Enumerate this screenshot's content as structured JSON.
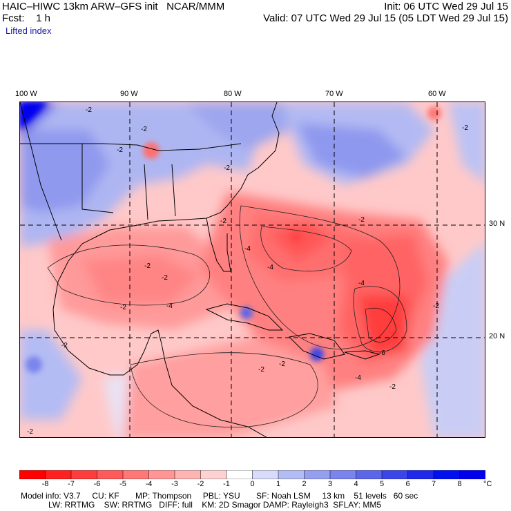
{
  "header": {
    "model_line": "HAIC–HIWC 13km ARW–GFS init   NCAR/MMM",
    "init_line": "Init: 06 UTC Wed 29 Jul 15",
    "fcst_line": "Fcst:    1 h",
    "valid_line": "Valid: 07 UTC Wed 29 Jul 15 (05 LDT Wed 29 Jul 15)",
    "field_name": "Lifted index"
  },
  "map": {
    "lon_labels": [
      "100 W",
      "90 W",
      "80 W",
      "70 W",
      "60 W"
    ],
    "lat_labels": [
      "30 N",
      "20 N"
    ],
    "contour_labels": [
      "-2",
      "-2",
      "-2",
      "-2",
      "-2",
      "-2",
      "-2",
      "-2",
      "-4",
      "-4",
      "-4",
      "-4",
      "-2",
      "-2",
      "-2",
      "-2",
      "-6",
      "-4",
      "-2",
      "-2",
      "-2",
      "-2"
    ]
  },
  "colorbar": {
    "ticks": [
      "-8",
      "-7",
      "-6",
      "-5",
      "-4",
      "-3",
      "-2",
      "-1",
      "0",
      "1",
      "2",
      "3",
      "4",
      "5",
      "6",
      "7",
      "8"
    ],
    "unit": "°C",
    "colors": [
      "#ff0000",
      "#ff2020",
      "#ff3c3c",
      "#ff5a5a",
      "#ff7777",
      "#ff9595",
      "#ffb4b4",
      "#ffd2d2",
      "#ffffff",
      "#d8dcfa",
      "#b4bcf4",
      "#959ff0",
      "#7a84ec",
      "#5c66e8",
      "#3c46e8",
      "#2028ea",
      "#0010f0",
      "#0000ee"
    ]
  },
  "footer": {
    "line1": "Model info: V3.7     CU: KF       MP: Thompson     PBL: YSU       SF: Noah LSM     13 km    51 levels   60 sec",
    "line2": "LW: RRTMG    SW: RRTMG   DIFF: full    KM: 2D Smagor DAMP: Rayleigh3  SFLAY: MM5"
  }
}
